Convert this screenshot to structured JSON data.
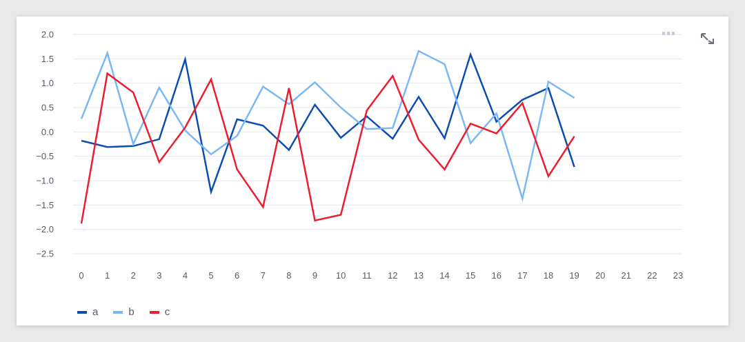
{
  "chart_data": {
    "type": "line",
    "x": [
      0,
      1,
      2,
      3,
      4,
      5,
      6,
      7,
      8,
      9,
      10,
      11,
      12,
      13,
      14,
      15,
      16,
      17,
      18,
      19
    ],
    "x_ticks": [
      "0",
      "1",
      "2",
      "3",
      "4",
      "5",
      "6",
      "7",
      "8",
      "9",
      "10",
      "11",
      "12",
      "13",
      "14",
      "15",
      "16",
      "17",
      "18",
      "19",
      "20",
      "21",
      "22",
      "23"
    ],
    "xlim": [
      0,
      23
    ],
    "ylim": [
      -2.5,
      2.0
    ],
    "y_ticks": [
      2.0,
      1.5,
      1.0,
      0.5,
      0.0,
      -0.5,
      -1.0,
      -1.5,
      -2.0,
      -2.5
    ],
    "y_tick_labels": [
      "2.0",
      "1.5",
      "1.0",
      "0.5",
      "0.0",
      "−0.5",
      "−1.0",
      "−1.5",
      "−2.0",
      "−2.5"
    ],
    "grid": true,
    "legend_position": "bottom-left",
    "series": [
      {
        "name": "a",
        "color": "#0b4db3",
        "values": [
          -0.18,
          -0.31,
          -0.29,
          -0.15,
          1.49,
          -1.23,
          0.26,
          0.13,
          -0.37,
          0.56,
          -0.12,
          0.32,
          -0.14,
          0.72,
          -0.13,
          1.59,
          0.21,
          0.66,
          0.9,
          -0.72
        ]
      },
      {
        "name": "b",
        "color": "#7ab8f5",
        "values": [
          0.27,
          1.62,
          -0.25,
          0.91,
          0.03,
          -0.46,
          -0.08,
          0.93,
          0.57,
          1.02,
          0.5,
          0.06,
          0.08,
          1.66,
          1.39,
          -0.23,
          0.38,
          -1.37,
          1.03,
          0.7
        ]
      },
      {
        "name": "c",
        "color": "#ee1c2e",
        "values": [
          -1.88,
          1.2,
          0.81,
          -0.62,
          0.09,
          1.08,
          -0.77,
          -1.54,
          0.9,
          -1.82,
          -1.7,
          0.44,
          1.15,
          -0.16,
          -0.77,
          0.17,
          -0.03,
          0.59,
          -0.91,
          -0.09
        ]
      }
    ]
  },
  "toolbar": {
    "menu_icon": "more-icon",
    "expand_icon": "expand-icon"
  }
}
